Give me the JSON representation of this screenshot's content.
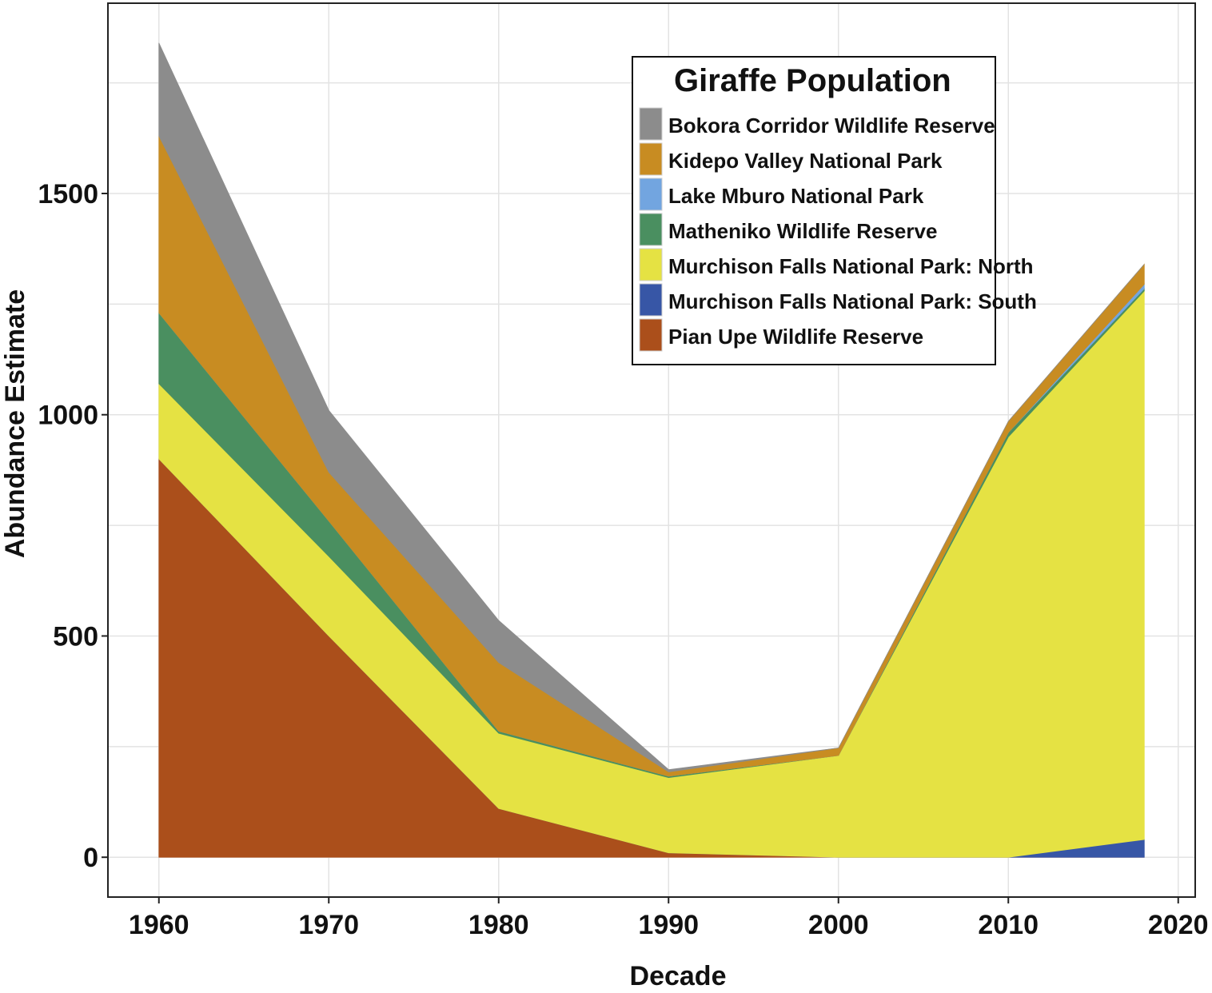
{
  "chart_data": {
    "type": "area",
    "stacked": true,
    "xlabel": "Decade",
    "ylabel": "Abundance Estimate",
    "x": [
      1960,
      1970,
      1980,
      1990,
      2000,
      2010,
      2018
    ],
    "xlim": [
      1957,
      2021
    ],
    "ylim": [
      -90,
      1930
    ],
    "xticks": [
      1960,
      1970,
      1980,
      1990,
      2000,
      2010,
      2020
    ],
    "yticks": [
      0,
      500,
      1000,
      1500
    ],
    "grid": true,
    "legend": {
      "title": "Giraffe Population",
      "position": "top-right"
    },
    "series": [
      {
        "name": "Pian Upe Wildlife Reserve",
        "color": "#ab4f1b",
        "values": [
          900,
          500,
          110,
          10,
          0,
          0,
          0
        ]
      },
      {
        "name": "Murchison Falls National Park: South",
        "color": "#3756a6",
        "values": [
          0,
          0,
          0,
          0,
          0,
          0,
          40
        ]
      },
      {
        "name": "Murchison Falls National Park: North",
        "color": "#e5e243",
        "values": [
          170,
          180,
          170,
          170,
          230,
          950,
          1240
        ]
      },
      {
        "name": "Matheniko Wildlife Reserve",
        "color": "#4a8f60",
        "values": [
          160,
          80,
          5,
          3,
          0,
          10,
          5
        ]
      },
      {
        "name": "Lake Mburo National Park",
        "color": "#72a5e0",
        "values": [
          0,
          0,
          0,
          0,
          0,
          0,
          10
        ]
      },
      {
        "name": "Kidepo Valley National Park",
        "color": "#c88c22",
        "values": [
          400,
          110,
          155,
          10,
          17,
          25,
          45
        ]
      },
      {
        "name": "Bokora Corridor Wildlife Reserve",
        "color": "#8c8c8c",
        "values": [
          210,
          140,
          95,
          5,
          0,
          0,
          0
        ]
      }
    ],
    "legend_order": [
      "Bokora Corridor Wildlife Reserve",
      "Kidepo Valley National Park",
      "Lake Mburo National Park",
      "Matheniko Wildlife Reserve",
      "Murchison Falls National Park: North",
      "Murchison Falls National Park: South",
      "Pian Upe Wildlife Reserve"
    ]
  }
}
